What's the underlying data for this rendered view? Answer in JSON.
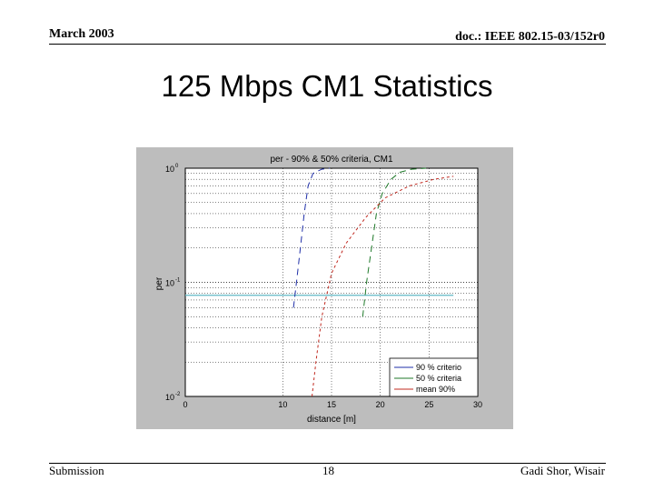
{
  "header": {
    "date": "March 2003",
    "doc_id": "doc.: IEEE 802.15-03/152r0"
  },
  "slide": {
    "title": "125 Mbps CM1 Statistics"
  },
  "footer": {
    "submission": "Submission",
    "page": "18",
    "author": "Gadi Shor, Wisair"
  },
  "colors": {
    "blue": "#1f2fa8",
    "green": "#1f7a2a",
    "red": "#c0281f",
    "cyan": "#5fb7c4",
    "figure_bg": "#bdbdbd"
  },
  "chart_data": {
    "type": "line",
    "title": "per - 90% & 50% criteria, CM1",
    "xlabel": "distance [m]",
    "ylabel": "per",
    "xlim": [
      0,
      30
    ],
    "ylim": [
      0.01,
      1
    ],
    "yscale": "log",
    "grid": true,
    "legend_position": "bottom-right",
    "x_ticks": [
      "0",
      "10",
      "15",
      "20",
      "25",
      "30"
    ],
    "y_ticks": [
      {
        "base": "10",
        "exp": "0",
        "value": 1
      },
      {
        "base": "10",
        "exp": "-1",
        "value": 0.1
      },
      {
        "base": "10",
        "exp": "-2",
        "value": 0.01
      }
    ],
    "legend": [
      "90 % criterio",
      "50 % criteria",
      "mean 90%"
    ],
    "series": [
      {
        "name": "90 % criterio",
        "color": "blue",
        "dash": "7,5",
        "points": [
          [
            11.1,
            0.06
          ],
          [
            11.4,
            0.1
          ],
          [
            11.8,
            0.2
          ],
          [
            12.2,
            0.4
          ],
          [
            12.6,
            0.7
          ],
          [
            13.1,
            0.9
          ],
          [
            14.0,
            0.98
          ],
          [
            14.8,
            1.0
          ]
        ]
      },
      {
        "name": "50 % criteria",
        "color": "green",
        "dash": "7,5",
        "points": [
          [
            18.2,
            0.05
          ],
          [
            18.6,
            0.1
          ],
          [
            19.1,
            0.2
          ],
          [
            19.6,
            0.4
          ],
          [
            20.2,
            0.6
          ],
          [
            21.1,
            0.8
          ],
          [
            22.0,
            0.92
          ],
          [
            23.2,
            0.98
          ],
          [
            24.7,
            1.0
          ]
        ]
      },
      {
        "name": "mean 90%",
        "color": "red",
        "dash": "3,3",
        "points": [
          [
            13.0,
            0.01
          ],
          [
            13.4,
            0.02
          ],
          [
            14.0,
            0.05
          ],
          [
            15.0,
            0.12
          ],
          [
            16.5,
            0.22
          ],
          [
            18.5,
            0.37
          ],
          [
            20.5,
            0.55
          ],
          [
            23.0,
            0.7
          ],
          [
            25.5,
            0.8
          ],
          [
            27.5,
            0.85
          ]
        ]
      }
    ],
    "reference_line": {
      "color": "cyan",
      "y": 0.077,
      "x": [
        0,
        27.5
      ]
    }
  }
}
